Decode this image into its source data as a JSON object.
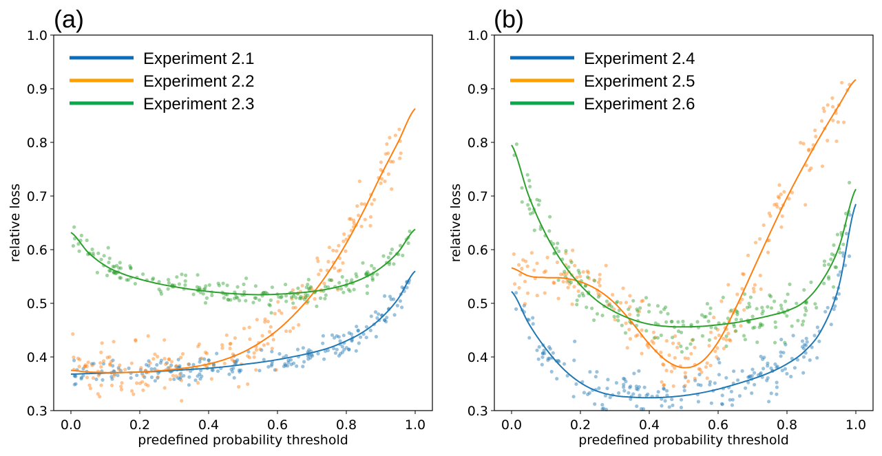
{
  "chart_data": [
    {
      "type": "scatter",
      "panel_label": "(a)",
      "title": "",
      "xlabel": "predefined probability threshold",
      "ylabel": "relative loss",
      "xlim": [
        -0.05,
        1.05
      ],
      "ylim": [
        0.3,
        1.0
      ],
      "xticks": [
        "0.0",
        "0.2",
        "0.4",
        "0.6",
        "0.8",
        "1.0"
      ],
      "yticks": [
        "0.3",
        "0.4",
        "0.5",
        "0.6",
        "0.7",
        "0.8",
        "0.9",
        "1.0"
      ],
      "grid": false,
      "legend_position": "top-left",
      "x": [
        0.0,
        0.05,
        0.1,
        0.15,
        0.2,
        0.25,
        0.3,
        0.35,
        0.4,
        0.45,
        0.5,
        0.55,
        0.6,
        0.65,
        0.7,
        0.75,
        0.8,
        0.85,
        0.9,
        0.95,
        1.0
      ],
      "series": [
        {
          "name": "Experiment 2.1",
          "color": "#1f77b4",
          "legend_color": "#0a6ebd",
          "fit": [
            0.368,
            0.369,
            0.37,
            0.371,
            0.372,
            0.373,
            0.375,
            0.377,
            0.379,
            0.382,
            0.386,
            0.39,
            0.395,
            0.401,
            0.408,
            0.417,
            0.43,
            0.447,
            0.472,
            0.508,
            0.56
          ],
          "scatter_noise": 0.012
        },
        {
          "name": "Experiment 2.2",
          "color": "#ff7f0e",
          "legend_color": "#ffa000",
          "fit": [
            0.375,
            0.372,
            0.371,
            0.371,
            0.372,
            0.374,
            0.377,
            0.381,
            0.387,
            0.396,
            0.409,
            0.427,
            0.45,
            0.48,
            0.516,
            0.56,
            0.612,
            0.672,
            0.738,
            0.8,
            0.863
          ],
          "scatter_noise": 0.025
        },
        {
          "name": "Experiment 2.3",
          "color": "#2ca02c",
          "legend_color": "#0aa84a",
          "fit": [
            0.632,
            0.595,
            0.57,
            0.555,
            0.545,
            0.537,
            0.531,
            0.526,
            0.522,
            0.519,
            0.517,
            0.516,
            0.517,
            0.519,
            0.522,
            0.527,
            0.535,
            0.547,
            0.566,
            0.595,
            0.638
          ],
          "scatter_noise": 0.012
        }
      ]
    },
    {
      "type": "scatter",
      "panel_label": "(b)",
      "title": "",
      "xlabel": "predefined probability threshold",
      "ylabel": "relative loss",
      "xlim": [
        -0.05,
        1.05
      ],
      "ylim": [
        0.3,
        1.0
      ],
      "xticks": [
        "0.0",
        "0.2",
        "0.4",
        "0.6",
        "0.8",
        "1.0"
      ],
      "yticks": [
        "0.3",
        "0.4",
        "0.5",
        "0.6",
        "0.7",
        "0.8",
        "0.9",
        "1.0"
      ],
      "grid": false,
      "legend_position": "top-left",
      "x": [
        0.0,
        0.05,
        0.1,
        0.15,
        0.2,
        0.25,
        0.3,
        0.35,
        0.4,
        0.45,
        0.5,
        0.55,
        0.6,
        0.65,
        0.7,
        0.75,
        0.8,
        0.85,
        0.9,
        0.95,
        1.0
      ],
      "series": [
        {
          "name": "Experiment 2.4",
          "color": "#1f77b4",
          "legend_color": "#0a6ebd",
          "fit": [
            0.522,
            0.462,
            0.415,
            0.378,
            0.352,
            0.336,
            0.328,
            0.325,
            0.324,
            0.325,
            0.328,
            0.333,
            0.34,
            0.349,
            0.359,
            0.371,
            0.387,
            0.41,
            0.45,
            0.53,
            0.685
          ],
          "scatter_noise": 0.022
        },
        {
          "name": "Experiment 2.5",
          "color": "#ff7f0e",
          "legend_color": "#ffa000",
          "fit": [
            0.566,
            0.551,
            0.548,
            0.547,
            0.54,
            0.525,
            0.5,
            0.464,
            0.424,
            0.393,
            0.38,
            0.39,
            0.428,
            0.49,
            0.56,
            0.63,
            0.697,
            0.758,
            0.815,
            0.868,
            0.917
          ],
          "scatter_noise": 0.03
        },
        {
          "name": "Experiment 2.6",
          "color": "#2ca02c",
          "legend_color": "#0aa84a",
          "fit": [
            0.795,
            0.7,
            0.628,
            0.574,
            0.534,
            0.504,
            0.484,
            0.47,
            0.461,
            0.457,
            0.456,
            0.457,
            0.46,
            0.464,
            0.47,
            0.477,
            0.486,
            0.503,
            0.54,
            0.603,
            0.713
          ],
          "scatter_noise": 0.022
        }
      ]
    }
  ]
}
